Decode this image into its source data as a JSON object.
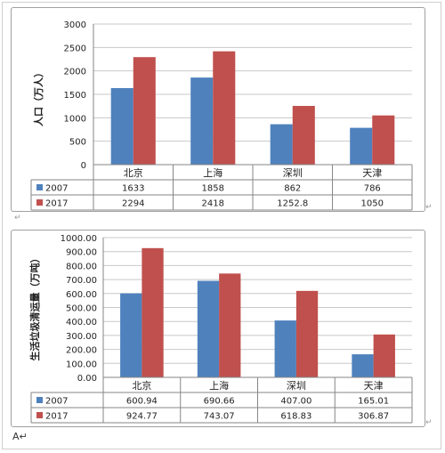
{
  "page": {
    "return_mark": "↵",
    "footer_text": "A↵"
  },
  "colors": {
    "series_2007": "#4f81bd",
    "series_2017": "#c0504d",
    "grid": "#c8c8c8",
    "axis": "#868686",
    "text": "#222222"
  },
  "chart_data": [
    {
      "type": "bar",
      "title": "",
      "xlabel": "",
      "ylabel": "人口（万人）",
      "categories": [
        "北京",
        "上海",
        "深圳",
        "天津"
      ],
      "yticks": [
        "0",
        "500",
        "1000",
        "1500",
        "2000",
        "2500",
        "3000"
      ],
      "ylim": [
        0,
        3000
      ],
      "grid": true,
      "legend": "data-table",
      "series": [
        {
          "name": "2007",
          "values": [
            1633,
            1858,
            862,
            786
          ],
          "labels": [
            "1633",
            "1858",
            "862",
            "786"
          ]
        },
        {
          "name": "2017",
          "values": [
            2294,
            2418,
            1252.8,
            1050
          ],
          "labels": [
            "2294",
            "2418",
            "1252.8",
            "1050"
          ]
        }
      ]
    },
    {
      "type": "bar",
      "title": "",
      "xlabel": "",
      "ylabel": "生活垃圾清运量（万吨）",
      "categories": [
        "北京",
        "上海",
        "深圳",
        "天津"
      ],
      "yticks": [
        "0.00",
        "100.00",
        "200.00",
        "300.00",
        "400.00",
        "500.00",
        "600.00",
        "700.00",
        "800.00",
        "900.00",
        "1000.00"
      ],
      "ylim": [
        0,
        1000
      ],
      "grid": true,
      "legend": "data-table",
      "series": [
        {
          "name": "2007",
          "values": [
            600.94,
            690.66,
            407.0,
            165.01
          ],
          "labels": [
            "600.94",
            "690.66",
            "407.00",
            "165.01"
          ]
        },
        {
          "name": "2017",
          "values": [
            924.77,
            743.07,
            618.83,
            306.87
          ],
          "labels": [
            "924.77",
            "743.07",
            "618.83",
            "306.87"
          ]
        }
      ]
    }
  ]
}
